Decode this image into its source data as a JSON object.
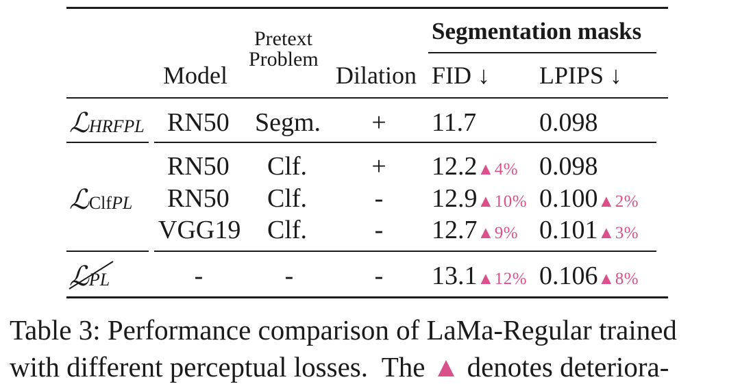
{
  "table": {
    "header": {
      "model": "Model",
      "pretext_line1": "Pretext",
      "pretext_line2": "Problem",
      "dilation": "Dilation",
      "group": "Segmentation masks",
      "fid": "FID ↓",
      "lpips": "LPIPS ↓"
    },
    "groups": [
      {
        "loss_symbol": "ℒ",
        "loss_sub": "HRFPL",
        "rows": [
          {
            "model": "RN50",
            "pretext": "Segm.",
            "dilation": "+",
            "fid": "11.7",
            "fid_delta": "",
            "lpips": "0.098",
            "lpips_delta": ""
          }
        ]
      },
      {
        "loss_symbol": "ℒ",
        "loss_sub_upright": "Clf",
        "loss_sub": "PL",
        "rows": [
          {
            "model": "RN50",
            "pretext": "Clf.",
            "dilation": "+",
            "fid": "12.2",
            "fid_delta": "▲4%",
            "lpips": "0.098",
            "lpips_delta": ""
          },
          {
            "model": "RN50",
            "pretext": "Clf.",
            "dilation": "-",
            "fid": "12.9",
            "fid_delta": "▲10%",
            "lpips": "0.100",
            "lpips_delta": "▲2%"
          },
          {
            "model": "VGG19",
            "pretext": "Clf.",
            "dilation": "-",
            "fid": "12.7",
            "fid_delta": "▲9%",
            "lpips": "0.101",
            "lpips_delta": "▲3%"
          }
        ]
      },
      {
        "loss_symbol": "ℒ",
        "loss_sub": "PL",
        "struck": true,
        "rows": [
          {
            "model": "-",
            "pretext": "-",
            "dilation": "-",
            "fid": "13.1",
            "fid_delta": "▲12%",
            "lpips": "0.106",
            "lpips_delta": "▲8%"
          }
        ]
      }
    ]
  },
  "caption": {
    "line1": "Table 3: Performance comparison of LaMa-Regular trained",
    "line2_a": "with different perceptual losses.  The ",
    "line2_tri": "▲",
    "line2_b": " denotes deteriora-"
  },
  "colors": {
    "delta": "#d9508a",
    "text": "#1a1a1a"
  }
}
